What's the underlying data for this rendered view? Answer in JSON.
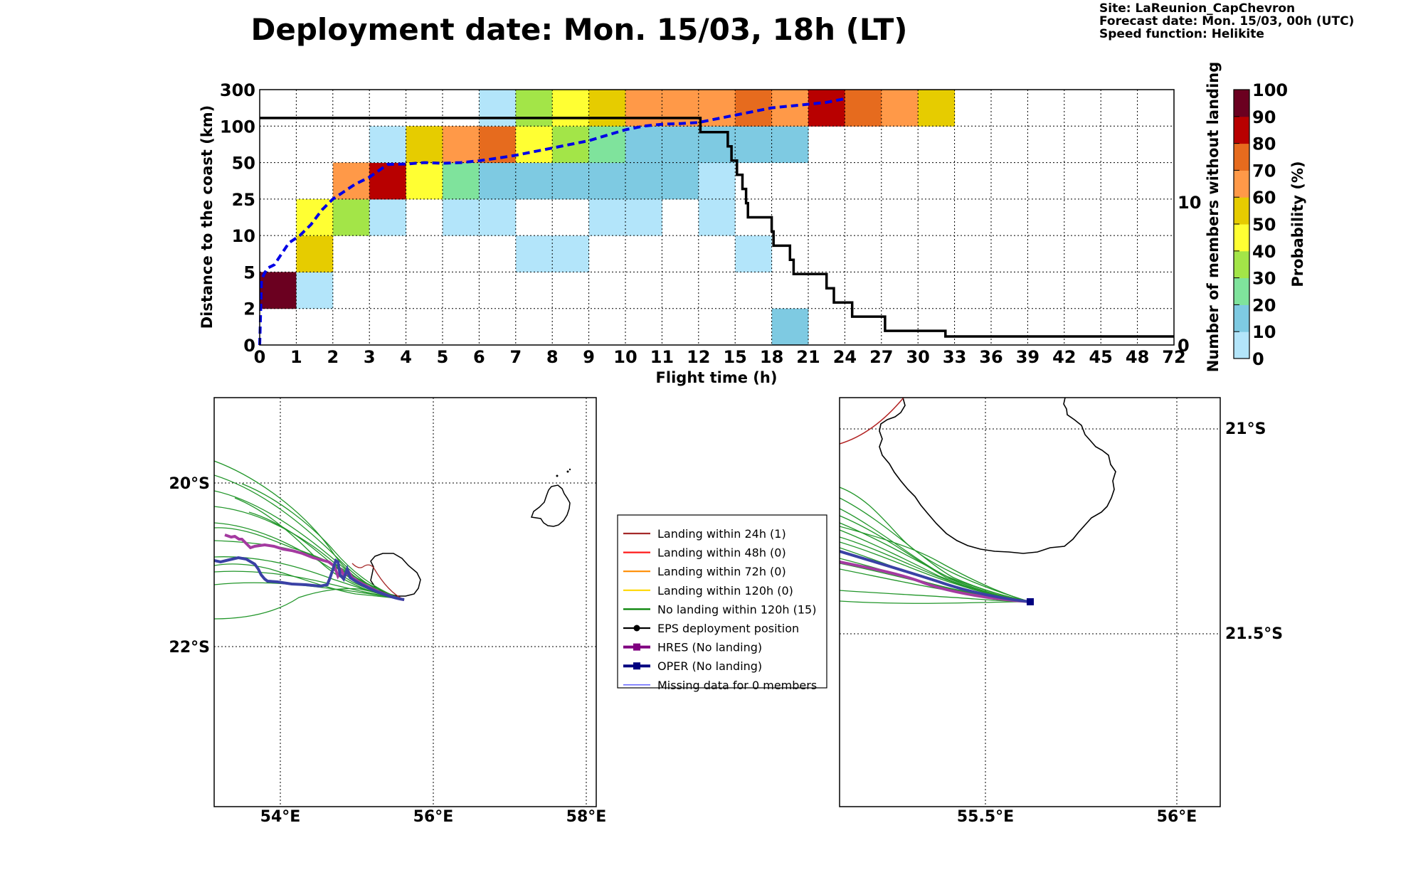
{
  "header": {
    "title": "Deployment date: Mon. 15/03, 18h (LT)",
    "info": [
      "Site: LaReunion_CapChevron",
      "Forecast date: Mon. 15/03, 00h (UTC)",
      "Speed function: Helikite"
    ]
  },
  "colors": {
    "bins": [
      "#b3e5fa",
      "#7ecae2",
      "#7fe39c",
      "#a3e548",
      "#ffff33",
      "#e6cc00",
      "#ff9948",
      "#e66b1e",
      "#b80000",
      "#6b0020"
    ],
    "mean_line": "#0000e6",
    "members_line": "#000000"
  },
  "chart_data": [
    {
      "type": "heatmap",
      "xlabel": "Flight time (h)",
      "ylabel": "Distance to the coast (km)",
      "y2label": "Number of members without landing",
      "colorbar_label": "Probability (%)",
      "x_ticks": [
        "0",
        "1",
        "2",
        "3",
        "4",
        "5",
        "6",
        "7",
        "8",
        "9",
        "10",
        "11",
        "12",
        "15",
        "18",
        "21",
        "24",
        "27",
        "30",
        "33",
        "36",
        "39",
        "42",
        "45",
        "48",
        "72"
      ],
      "y_ticks": [
        "0",
        "2",
        "5",
        "10",
        "25",
        "50",
        "100",
        "300"
      ],
      "y2_ticks": [
        "0",
        "10"
      ],
      "y2lim": [
        0,
        18
      ],
      "colorbar_ticks": [
        "0",
        "10",
        "20",
        "30",
        "40",
        "50",
        "60",
        "70",
        "80",
        "90",
        "100"
      ],
      "grid": true,
      "cells_note": "[x_index, y_index, probability_bin 0-9]",
      "cells": [
        [
          0,
          1,
          9
        ],
        [
          1,
          1,
          0
        ],
        [
          1,
          2,
          5
        ],
        [
          7,
          2,
          0
        ],
        [
          8,
          2,
          0
        ],
        [
          13,
          2,
          0
        ],
        [
          1,
          3,
          4
        ],
        [
          2,
          3,
          3
        ],
        [
          3,
          3,
          0
        ],
        [
          5,
          3,
          0
        ],
        [
          6,
          3,
          0
        ],
        [
          9,
          3,
          0
        ],
        [
          10,
          3,
          0
        ],
        [
          12,
          3,
          0
        ],
        [
          2,
          4,
          6
        ],
        [
          3,
          4,
          8
        ],
        [
          4,
          4,
          4
        ],
        [
          5,
          4,
          2
        ],
        [
          6,
          4,
          1
        ],
        [
          7,
          4,
          1
        ],
        [
          8,
          4,
          1
        ],
        [
          9,
          4,
          1
        ],
        [
          10,
          4,
          1
        ],
        [
          11,
          4,
          1
        ],
        [
          12,
          4,
          0
        ],
        [
          3,
          5,
          0
        ],
        [
          4,
          5,
          5
        ],
        [
          5,
          5,
          6
        ],
        [
          6,
          5,
          7
        ],
        [
          7,
          5,
          4
        ],
        [
          8,
          5,
          3
        ],
        [
          9,
          5,
          2
        ],
        [
          10,
          5,
          1
        ],
        [
          11,
          5,
          1
        ],
        [
          12,
          5,
          1
        ],
        [
          13,
          5,
          1
        ],
        [
          14,
          5,
          1
        ],
        [
          6,
          6,
          0
        ],
        [
          7,
          6,
          3
        ],
        [
          8,
          6,
          4
        ],
        [
          9,
          6,
          5
        ],
        [
          10,
          6,
          6
        ],
        [
          11,
          6,
          6
        ],
        [
          12,
          6,
          6
        ],
        [
          13,
          6,
          7
        ],
        [
          14,
          6,
          6
        ],
        [
          15,
          6,
          8
        ],
        [
          16,
          6,
          7
        ],
        [
          17,
          6,
          6
        ],
        [
          18,
          6,
          5
        ],
        [
          14,
          0,
          1
        ]
      ],
      "mean_distance_note": "dashed blue line, [x_index, y_position]",
      "mean_distance": [
        [
          0,
          0
        ],
        [
          0.05,
          1.8
        ],
        [
          0.2,
          2.1
        ],
        [
          0.4,
          2.2
        ],
        [
          0.6,
          2.5
        ],
        [
          0.8,
          2.8
        ],
        [
          1.1,
          3.0
        ],
        [
          1.4,
          3.3
        ],
        [
          1.7,
          3.7
        ],
        [
          2.0,
          4.0
        ],
        [
          2.3,
          4.2
        ],
        [
          2.6,
          4.4
        ],
        [
          3.0,
          4.6
        ],
        [
          3.5,
          4.95
        ],
        [
          4.0,
          4.96
        ],
        [
          4.5,
          5.0
        ],
        [
          5.0,
          4.98
        ],
        [
          5.5,
          5.0
        ],
        [
          6.0,
          5.05
        ],
        [
          6.5,
          5.12
        ],
        [
          7.0,
          5.2
        ],
        [
          8.0,
          5.4
        ],
        [
          9.0,
          5.6
        ],
        [
          9.5,
          5.75
        ],
        [
          10.0,
          5.9
        ],
        [
          10.5,
          6.0
        ],
        [
          11.0,
          6.05
        ],
        [
          11.5,
          6.07
        ],
        [
          12.0,
          6.1
        ],
        [
          12.5,
          6.2
        ],
        [
          13.0,
          6.3
        ],
        [
          13.5,
          6.4
        ],
        [
          14.0,
          6.5
        ],
        [
          14.5,
          6.55
        ],
        [
          15.0,
          6.6
        ],
        [
          15.5,
          6.65
        ],
        [
          16.0,
          6.75
        ]
      ],
      "members_without_landing_note": "black step line, [x_index, count]",
      "members_without_landing": [
        [
          0,
          16
        ],
        [
          12.05,
          16
        ],
        [
          12.05,
          15
        ],
        [
          12.8,
          15
        ],
        [
          12.8,
          14
        ],
        [
          12.9,
          14
        ],
        [
          12.9,
          13
        ],
        [
          13.05,
          13
        ],
        [
          13.05,
          12
        ],
        [
          13.2,
          12
        ],
        [
          13.2,
          11
        ],
        [
          13.3,
          11
        ],
        [
          13.3,
          10
        ],
        [
          13.35,
          10
        ],
        [
          13.35,
          9
        ],
        [
          14.0,
          9
        ],
        [
          14.0,
          8
        ],
        [
          14.05,
          8
        ],
        [
          14.05,
          7
        ],
        [
          14.5,
          7
        ],
        [
          14.5,
          6
        ],
        [
          14.6,
          6
        ],
        [
          14.6,
          5
        ],
        [
          15.5,
          5
        ],
        [
          15.5,
          4
        ],
        [
          15.7,
          4
        ],
        [
          15.7,
          3
        ],
        [
          16.2,
          3
        ],
        [
          16.2,
          2
        ],
        [
          17.1,
          2
        ],
        [
          17.1,
          1
        ],
        [
          18.75,
          1
        ],
        [
          18.75,
          0.6
        ],
        [
          25,
          0.6
        ]
      ]
    },
    {
      "type": "map",
      "name": "regional",
      "x_ticks": [
        "54°E",
        "56°E",
        "58°E"
      ],
      "y_ticks": [
        "20°S",
        "22°S"
      ],
      "xlim": [
        53.15,
        58.15
      ],
      "ylim": [
        -23.9,
        -18.9
      ],
      "deployment_position": [
        55.65,
        -21.35
      ]
    },
    {
      "type": "map",
      "name": "zoom",
      "x_ticks": [
        "55.5°E",
        "56°E"
      ],
      "y_ticks": [
        "21°S",
        "21.5°S"
      ],
      "xlim": [
        55.12,
        56.12
      ],
      "ylim": [
        -21.95,
        -20.93
      ],
      "deployment_position": [
        55.62,
        -21.36
      ]
    }
  ],
  "legend": [
    {
      "label": "Landing within 24h (1)",
      "color": "#a52a2a",
      "marker": "line"
    },
    {
      "label": "Landing within 48h (0)",
      "color": "#ff1a1a",
      "marker": "line"
    },
    {
      "label": "Landing within 72h (0)",
      "color": "#ff8c00",
      "marker": "line"
    },
    {
      "label": "Landing within 120h (0)",
      "color": "#ffd700",
      "marker": "line"
    },
    {
      "label": "No landing within 120h (15)",
      "color": "#008000",
      "marker": "line"
    },
    {
      "label": "EPS deployment position",
      "color": "#000000",
      "marker": "dot"
    },
    {
      "label": "HRES (No landing)",
      "color": "#800080",
      "marker": "square"
    },
    {
      "label": "OPER (No landing)",
      "color": "#000080",
      "marker": "square"
    },
    {
      "label": "Missing data for 0 members",
      "color": "#3333ff",
      "marker": "thin"
    }
  ]
}
